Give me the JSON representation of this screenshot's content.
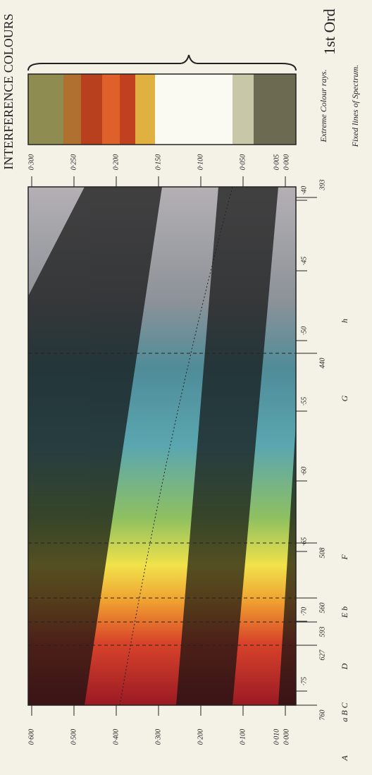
{
  "title": "INTERFERENCE COLOURS",
  "order_label": "1st Ord",
  "thickness_lower": [
    "0·600",
    "0·500",
    "0·400",
    "0·300",
    "0·200",
    "0·100",
    "0·010",
    "0·000"
  ],
  "thickness_upper": [
    "0·300",
    "0·250",
    "0·200",
    "0·150",
    "0·100",
    "0·050",
    "0·005",
    "0·000"
  ],
  "wavelength_ticks": [
    "·75",
    "·70",
    "·65",
    "·60",
    "·55",
    "·50",
    "·45",
    "·40"
  ],
  "wavelength_values": [
    "760",
    "627",
    "593",
    "560",
    "508",
    "440",
    "393"
  ],
  "fixed_lines": [
    "A",
    "a B C",
    "D",
    "E b",
    "F",
    "G",
    "h"
  ],
  "captions": {
    "extreme": "Extreme Colour rays.",
    "fixed": "Fixed lines of Spectrum."
  }
}
